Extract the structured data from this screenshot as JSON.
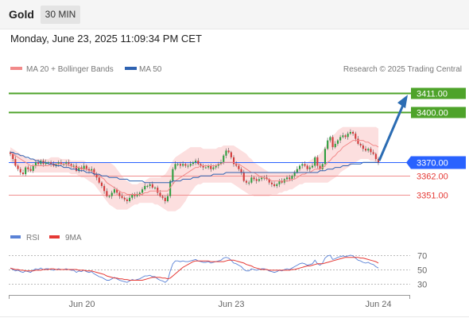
{
  "header": {
    "instrument": "Gold",
    "timeframe": "30 MIN"
  },
  "datetime": "Monday, June 23, 2025 11:09:34 PM CET",
  "legend": {
    "ma20_bb": "MA 20 + Bollinger Bands",
    "ma50": "MA 50",
    "credit": "Research © 2025 Trading Central"
  },
  "rsi_legend": {
    "rsi": "RSI",
    "ma": "9MA"
  },
  "colors": {
    "up": "#2e9e3f",
    "down": "#d23a3a",
    "bollinger": "#fcd9d9",
    "ma20": "#f28a8a",
    "ma50": "#2e62b1",
    "resistance": "#4ea32a",
    "support": "#f08f8f",
    "current": "#2962ff",
    "arrow": "#2b6cb3"
  },
  "chart_data": [
    {
      "type": "candlestick",
      "x_labels": [
        "Jun 20",
        "Jun 23",
        "Jun 24"
      ],
      "y_range": [
        3339,
        3421
      ],
      "current_price": {
        "label": "3370.00",
        "value": 3370.0
      },
      "levels": [
        {
          "label": "3411.00",
          "value": 3411.0,
          "kind": "resistance"
        },
        {
          "label": "3400.00",
          "value": 3400.0,
          "kind": "resistance"
        },
        {
          "label": "3362.00",
          "value": 3362.0,
          "kind": "support"
        },
        {
          "label": "3351.00",
          "value": 3351.0,
          "kind": "support"
        }
      ],
      "projection": {
        "from": 3371,
        "to": 3411
      },
      "closes": [
        3375,
        3372,
        3368,
        3366,
        3364,
        3363,
        3367,
        3366,
        3365,
        3368,
        3370,
        3369,
        3371,
        3369,
        3370,
        3370,
        3369,
        3368,
        3369,
        3370,
        3369,
        3369,
        3370,
        3369,
        3368,
        3368,
        3365,
        3367,
        3366,
        3368,
        3366,
        3365,
        3366,
        3363,
        3361,
        3358,
        3356,
        3353,
        3350,
        3350,
        3352,
        3354,
        3352,
        3350,
        3349,
        3348,
        3347,
        3349,
        3351,
        3350,
        3351,
        3352,
        3354,
        3356,
        3356,
        3357,
        3355,
        3355,
        3352,
        3350,
        3349,
        3347,
        3350,
        3359,
        3366,
        3369,
        3369,
        3368,
        3369,
        3368,
        3368,
        3369,
        3370,
        3371,
        3369,
        3368,
        3367,
        3367,
        3368,
        3366,
        3367,
        3368,
        3369,
        3370,
        3374,
        3377,
        3376,
        3373,
        3369,
        3368,
        3366,
        3364,
        3359,
        3358,
        3358,
        3361,
        3360,
        3359,
        3360,
        3361,
        3361,
        3360,
        3358,
        3357,
        3356,
        3357,
        3359,
        3358,
        3360,
        3361,
        3360,
        3362,
        3364,
        3366,
        3368,
        3369,
        3368,
        3366,
        3367,
        3368,
        3373,
        3368,
        3366,
        3369,
        3378,
        3383,
        3385,
        3379,
        3381,
        3383,
        3385,
        3386,
        3385,
        3387,
        3388,
        3387,
        3384,
        3381,
        3380,
        3378,
        3377,
        3378,
        3376,
        3375,
        3372,
        3370
      ],
      "ma20": [
        3376,
        3375,
        3374,
        3373,
        3372,
        3371,
        3370,
        3369,
        3368,
        3368,
        3368,
        3368,
        3368,
        3368,
        3368,
        3368,
        3369,
        3369,
        3369,
        3369,
        3369,
        3369,
        3369,
        3368,
        3368,
        3367,
        3367,
        3367,
        3366,
        3366,
        3366,
        3365,
        3365,
        3364,
        3363,
        3362,
        3361,
        3360,
        3358,
        3357,
        3356,
        3355,
        3354,
        3353,
        3352,
        3352,
        3351,
        3351,
        3351,
        3351,
        3351,
        3351,
        3351,
        3352,
        3352,
        3353,
        3353,
        3353,
        3353,
        3353,
        3353,
        3353,
        3353,
        3355,
        3357,
        3359,
        3360,
        3361,
        3362,
        3363,
        3364,
        3365,
        3366,
        3367,
        3367,
        3368,
        3368,
        3368,
        3368,
        3368,
        3368,
        3368,
        3369,
        3369,
        3370,
        3370,
        3370,
        3370,
        3370,
        3369,
        3369,
        3368,
        3367,
        3366,
        3365,
        3364,
        3364,
        3363,
        3362,
        3361,
        3361,
        3360,
        3360,
        3359,
        3359,
        3359,
        3359,
        3359,
        3359,
        3359,
        3359,
        3360,
        3360,
        3361,
        3362,
        3363,
        3363,
        3364,
        3364,
        3365,
        3366,
        3366,
        3366,
        3367,
        3368,
        3370,
        3371,
        3373,
        3374,
        3376,
        3377,
        3379,
        3380,
        3381,
        3382,
        3383,
        3383,
        3383,
        3383,
        3383,
        3382,
        3382,
        3381,
        3380,
        3380,
        3379
      ],
      "bb_upper": [
        3379,
        3378,
        3377,
        3376,
        3375,
        3374,
        3373,
        3372,
        3372,
        3372,
        3372,
        3372,
        3372,
        3372,
        3372,
        3372,
        3373,
        3373,
        3373,
        3373,
        3372,
        3372,
        3372,
        3372,
        3371,
        3371,
        3371,
        3371,
        3371,
        3371,
        3370,
        3370,
        3370,
        3370,
        3370,
        3370,
        3370,
        3370,
        3370,
        3370,
        3369,
        3368,
        3366,
        3364,
        3362,
        3360,
        3359,
        3358,
        3357,
        3357,
        3357,
        3358,
        3358,
        3359,
        3360,
        3361,
        3361,
        3361,
        3361,
        3361,
        3362,
        3363,
        3365,
        3368,
        3371,
        3373,
        3374,
        3375,
        3376,
        3377,
        3378,
        3379,
        3379,
        3379,
        3379,
        3379,
        3378,
        3378,
        3378,
        3378,
        3378,
        3378,
        3379,
        3379,
        3380,
        3380,
        3380,
        3380,
        3380,
        3379,
        3378,
        3377,
        3376,
        3375,
        3373,
        3372,
        3370,
        3369,
        3368,
        3367,
        3366,
        3365,
        3364,
        3364,
        3364,
        3364,
        3364,
        3364,
        3364,
        3364,
        3364,
        3364,
        3365,
        3366,
        3367,
        3368,
        3369,
        3370,
        3371,
        3372,
        3373,
        3374,
        3375,
        3377,
        3379,
        3382,
        3384,
        3386,
        3387,
        3389,
        3390,
        3391,
        3391,
        3391,
        3391,
        3391,
        3391,
        3391,
        3391,
        3391,
        3391,
        3391,
        3391,
        3391,
        3391,
        3390
      ],
      "bb_lower": [
        3370,
        3369,
        3368,
        3367,
        3366,
        3365,
        3364,
        3364,
        3364,
        3364,
        3364,
        3364,
        3364,
        3364,
        3364,
        3364,
        3364,
        3364,
        3364,
        3364,
        3364,
        3364,
        3364,
        3364,
        3363,
        3363,
        3363,
        3362,
        3361,
        3361,
        3360,
        3359,
        3358,
        3357,
        3355,
        3353,
        3351,
        3349,
        3347,
        3345,
        3344,
        3343,
        3342,
        3342,
        3342,
        3342,
        3342,
        3343,
        3344,
        3345,
        3345,
        3346,
        3346,
        3346,
        3346,
        3346,
        3346,
        3345,
        3345,
        3344,
        3343,
        3342,
        3341,
        3341,
        3341,
        3341,
        3342,
        3343,
        3345,
        3347,
        3350,
        3352,
        3354,
        3356,
        3357,
        3357,
        3358,
        3358,
        3358,
        3358,
        3358,
        3358,
        3358,
        3358,
        3358,
        3358,
        3358,
        3358,
        3357,
        3356,
        3355,
        3354,
        3353,
        3352,
        3351,
        3351,
        3350,
        3350,
        3350,
        3350,
        3350,
        3350,
        3350,
        3351,
        3351,
        3351,
        3352,
        3352,
        3353,
        3353,
        3354,
        3354,
        3355,
        3356,
        3357,
        3357,
        3358,
        3358,
        3358,
        3358,
        3358,
        3358,
        3358,
        3358,
        3358,
        3358,
        3359,
        3360,
        3361,
        3362,
        3364,
        3365,
        3366,
        3367,
        3368,
        3369,
        3370,
        3371,
        3372,
        3372,
        3372,
        3372,
        3371,
        3371,
        3370,
        3369
      ],
      "ma50": [
        3376,
        3376,
        3375,
        3375,
        3374,
        3374,
        3373,
        3373,
        3372,
        3372,
        3371,
        3371,
        3370,
        3370,
        3370,
        3369,
        3369,
        3369,
        3368,
        3368,
        3368,
        3367,
        3367,
        3367,
        3366,
        3366,
        3366,
        3365,
        3365,
        3365,
        3364,
        3364,
        3364,
        3363,
        3363,
        3363,
        3362,
        3362,
        3362,
        3361,
        3361,
        3361,
        3361,
        3360,
        3360,
        3360,
        3360,
        3359,
        3359,
        3359,
        3359,
        3359,
        3359,
        3358,
        3358,
        3358,
        3358,
        3358,
        3358,
        3358,
        3358,
        3358,
        3358,
        3358,
        3359,
        3359,
        3359,
        3359,
        3360,
        3360,
        3360,
        3360,
        3361,
        3361,
        3361,
        3362,
        3362,
        3362,
        3362,
        3362,
        3363,
        3363,
        3363,
        3363,
        3363,
        3364,
        3364,
        3364,
        3364,
        3364,
        3364,
        3364,
        3364,
        3364,
        3364,
        3364,
        3364,
        3364,
        3364,
        3364,
        3364,
        3364,
        3364,
        3364,
        3364,
        3364,
        3364,
        3364,
        3364,
        3364,
        3364,
        3364,
        3364,
        3364,
        3364,
        3364,
        3364,
        3364,
        3364,
        3364,
        3364,
        3364,
        3365,
        3365,
        3365,
        3366,
        3366,
        3366,
        3367,
        3367,
        3367,
        3368,
        3368,
        3368,
        3369,
        3369,
        3369,
        3369,
        3369,
        3370,
        3370,
        3370,
        3370,
        3370,
        3370,
        3370
      ]
    },
    {
      "type": "line",
      "name": "RSI",
      "y_ticks": [
        70,
        50,
        30
      ],
      "y_range": [
        20,
        80
      ],
      "rsi": [
        52,
        50,
        48,
        49,
        47,
        46,
        48,
        47,
        46,
        49,
        51,
        50,
        52,
        50,
        51,
        51,
        50,
        49,
        50,
        51,
        50,
        50,
        51,
        50,
        49,
        49,
        46,
        48,
        47,
        49,
        47,
        46,
        47,
        44,
        42,
        40,
        39,
        37,
        35,
        35,
        37,
        39,
        37,
        35,
        34,
        33,
        32,
        34,
        36,
        35,
        36,
        37,
        39,
        41,
        41,
        42,
        40,
        40,
        37,
        35,
        34,
        32,
        35,
        48,
        58,
        62,
        62,
        61,
        62,
        61,
        61,
        62,
        63,
        64,
        62,
        61,
        60,
        60,
        61,
        59,
        60,
        61,
        62,
        63,
        66,
        67,
        66,
        63,
        59,
        58,
        56,
        54,
        50,
        48,
        48,
        51,
        50,
        49,
        50,
        51,
        51,
        50,
        48,
        47,
        46,
        47,
        49,
        48,
        50,
        51,
        50,
        52,
        54,
        56,
        58,
        59,
        58,
        56,
        57,
        58,
        63,
        58,
        56,
        59,
        66,
        69,
        70,
        64,
        65,
        67,
        68,
        69,
        68,
        69,
        70,
        69,
        66,
        63,
        62,
        60,
        59,
        60,
        58,
        57,
        54,
        52
      ],
      "ma9": [
        52,
        51,
        50,
        50,
        49,
        49,
        48,
        48,
        48,
        48,
        49,
        49,
        49,
        50,
        50,
        50,
        51,
        51,
        50,
        50,
        50,
        50,
        50,
        50,
        50,
        50,
        50,
        49,
        49,
        49,
        48,
        48,
        48,
        47,
        46,
        45,
        44,
        43,
        41,
        40,
        39,
        38,
        38,
        37,
        37,
        36,
        36,
        35,
        35,
        35,
        35,
        35,
        35,
        36,
        37,
        38,
        39,
        39,
        39,
        39,
        38,
        38,
        37,
        38,
        41,
        44,
        47,
        50,
        53,
        55,
        57,
        59,
        61,
        62,
        62,
        62,
        62,
        62,
        62,
        61,
        61,
        61,
        61,
        61,
        61,
        62,
        63,
        63,
        63,
        62,
        61,
        60,
        59,
        57,
        56,
        55,
        53,
        52,
        51,
        50,
        50,
        50,
        49,
        49,
        49,
        49,
        49,
        49,
        49,
        49,
        49,
        50,
        50,
        51,
        52,
        53,
        54,
        55,
        55,
        56,
        57,
        58,
        58,
        58,
        59,
        60,
        61,
        62,
        63,
        64,
        65,
        66,
        67,
        67,
        67,
        67,
        67,
        67,
        66,
        66,
        65,
        64,
        63,
        62,
        61,
        59
      ]
    }
  ]
}
